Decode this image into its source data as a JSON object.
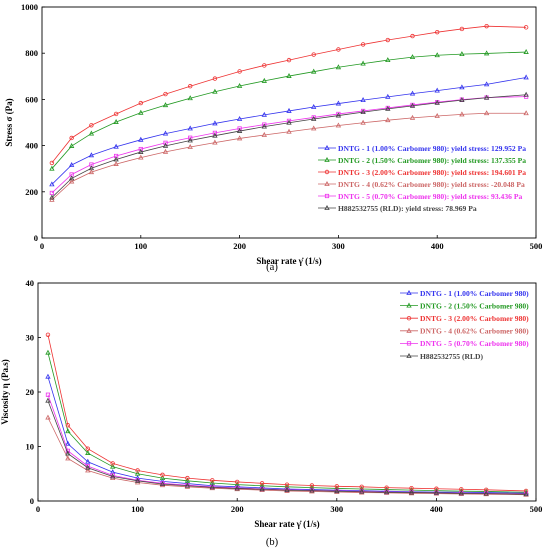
{
  "panel_labels": [
    "(a)",
    "(b)"
  ],
  "chart_data": [
    {
      "type": "line",
      "panel": "(a)",
      "xlabel": "Shear rate γ̇ (1/s)",
      "ylabel": "Stress σ (Pa)",
      "xlim": [
        0,
        500
      ],
      "ylim": [
        0,
        1000
      ],
      "xticks": [
        0,
        100,
        200,
        300,
        400,
        500
      ],
      "yticks": [
        0,
        200,
        400,
        600,
        800,
        1000
      ],
      "grid": false,
      "legend_position": "bottom-right",
      "x": [
        10,
        30,
        50,
        75,
        100,
        125,
        150,
        175,
        200,
        225,
        250,
        275,
        300,
        325,
        350,
        375,
        400,
        425,
        450,
        490
      ],
      "series": [
        {
          "name": "DNTG - 1 (1.00% Carbomer 980): yield stress: 129.952 Pa",
          "color": "#3333ee",
          "marker": "triangle",
          "values": [
            232,
            316,
            358,
            395,
            425,
            452,
            474,
            496,
            515,
            533,
            550,
            567,
            582,
            597,
            611,
            625,
            638,
            652,
            665,
            695
          ]
        },
        {
          "name": "DNTG - 2 (1.50% Carbomer 980): yield stress: 137.355 Pa",
          "color": "#229922",
          "marker": "triangle",
          "values": [
            300,
            398,
            452,
            502,
            542,
            575,
            605,
            633,
            658,
            680,
            701,
            720,
            739,
            755,
            770,
            783,
            791,
            796,
            799,
            805
          ]
        },
        {
          "name": "DNTG - 3 (2.00% Carbomer 980): yield stress: 194.601 Pa",
          "color": "#ee3333",
          "marker": "circle",
          "values": [
            325,
            433,
            488,
            537,
            584,
            623,
            657,
            690,
            721,
            747,
            770,
            794,
            816,
            838,
            857,
            874,
            891,
            905,
            917,
            912
          ]
        },
        {
          "name": "DNTG - 4 (0.62% Carbomer 980): yield stress: -20.048 Pa",
          "color": "#cc6666",
          "marker": "triangle",
          "values": [
            165,
            244,
            285,
            320,
            348,
            373,
            394,
            413,
            431,
            446,
            460,
            474,
            487,
            499,
            510,
            520,
            528,
            535,
            540,
            540
          ]
        },
        {
          "name": "DNTG - 5 (0.70% Carbomer 980): yield stress: 93.436 Pa",
          "color": "#ee33ee",
          "marker": "square",
          "values": [
            195,
            275,
            318,
            355,
            385,
            412,
            434,
            455,
            474,
            491,
            507,
            522,
            537,
            550,
            563,
            576,
            588,
            599,
            608,
            612
          ]
        },
        {
          "name": "H882532755 (RLD): yield stress: 78.969 Pa",
          "color": "#444444",
          "marker": "triangle",
          "values": [
            175,
            258,
            302,
            340,
            372,
            399,
            422,
            443,
            463,
            482,
            499,
            515,
            530,
            545,
            559,
            572,
            585,
            597,
            607,
            620
          ]
        }
      ]
    },
    {
      "type": "line",
      "panel": "(b)",
      "xlabel": "Shear rate γ̇ (1/s)",
      "ylabel": "Viscosity η (Pa.s)",
      "xlim": [
        0,
        500
      ],
      "ylim": [
        0,
        40
      ],
      "xticks": [
        0,
        100,
        200,
        300,
        400,
        500
      ],
      "yticks": [
        0,
        10,
        20,
        30,
        40
      ],
      "grid": false,
      "legend_position": "top-right",
      "x": [
        10,
        30,
        50,
        75,
        100,
        125,
        150,
        175,
        200,
        225,
        250,
        275,
        300,
        325,
        350,
        375,
        400,
        425,
        450,
        490
      ],
      "series": [
        {
          "name": "DNTG - 1 (1.00% Carbomer 980)",
          "color": "#3333ee",
          "marker": "triangle",
          "values": [
            22.8,
            10.5,
            7.2,
            5.3,
            4.2,
            3.6,
            3.2,
            2.8,
            2.6,
            2.4,
            2.2,
            2.1,
            2.0,
            1.9,
            1.8,
            1.7,
            1.65,
            1.6,
            1.55,
            1.45
          ]
        },
        {
          "name": "DNTG - 2 (1.50% Carbomer 980)",
          "color": "#229922",
          "marker": "triangle",
          "values": [
            27.2,
            12.8,
            8.8,
            6.3,
            5.0,
            4.2,
            3.7,
            3.3,
            3.0,
            2.8,
            2.6,
            2.45,
            2.3,
            2.2,
            2.1,
            2.0,
            1.9,
            1.8,
            1.75,
            1.6
          ]
        },
        {
          "name": "DNTG - 3 (2.00% Carbomer 980)",
          "color": "#ee3333",
          "marker": "circle",
          "values": [
            30.5,
            13.9,
            9.6,
            6.9,
            5.6,
            4.8,
            4.2,
            3.8,
            3.5,
            3.25,
            3.0,
            2.85,
            2.7,
            2.6,
            2.45,
            2.35,
            2.25,
            2.15,
            2.05,
            1.85
          ]
        },
        {
          "name": "DNTG - 4 (0.62% Carbomer 980)",
          "color": "#cc6666",
          "marker": "triangle",
          "values": [
            15.3,
            7.8,
            5.6,
            4.2,
            3.4,
            2.9,
            2.6,
            2.35,
            2.15,
            2.0,
            1.85,
            1.75,
            1.65,
            1.55,
            1.5,
            1.4,
            1.35,
            1.3,
            1.25,
            1.15
          ]
        },
        {
          "name": "DNTG - 5 (0.70% Carbomer 980)",
          "color": "#ee33ee",
          "marker": "square",
          "values": [
            19.5,
            9.2,
            6.4,
            4.7,
            3.8,
            3.25,
            2.9,
            2.6,
            2.4,
            2.2,
            2.05,
            1.95,
            1.85,
            1.75,
            1.65,
            1.6,
            1.5,
            1.45,
            1.4,
            1.3
          ]
        },
        {
          "name": "H882532755 (RLD)",
          "color": "#444444",
          "marker": "triangle",
          "values": [
            18.4,
            8.7,
            6.1,
            4.5,
            3.7,
            3.1,
            2.8,
            2.5,
            2.3,
            2.15,
            2.0,
            1.9,
            1.8,
            1.7,
            1.6,
            1.55,
            1.5,
            1.4,
            1.35,
            1.25
          ]
        }
      ]
    }
  ]
}
